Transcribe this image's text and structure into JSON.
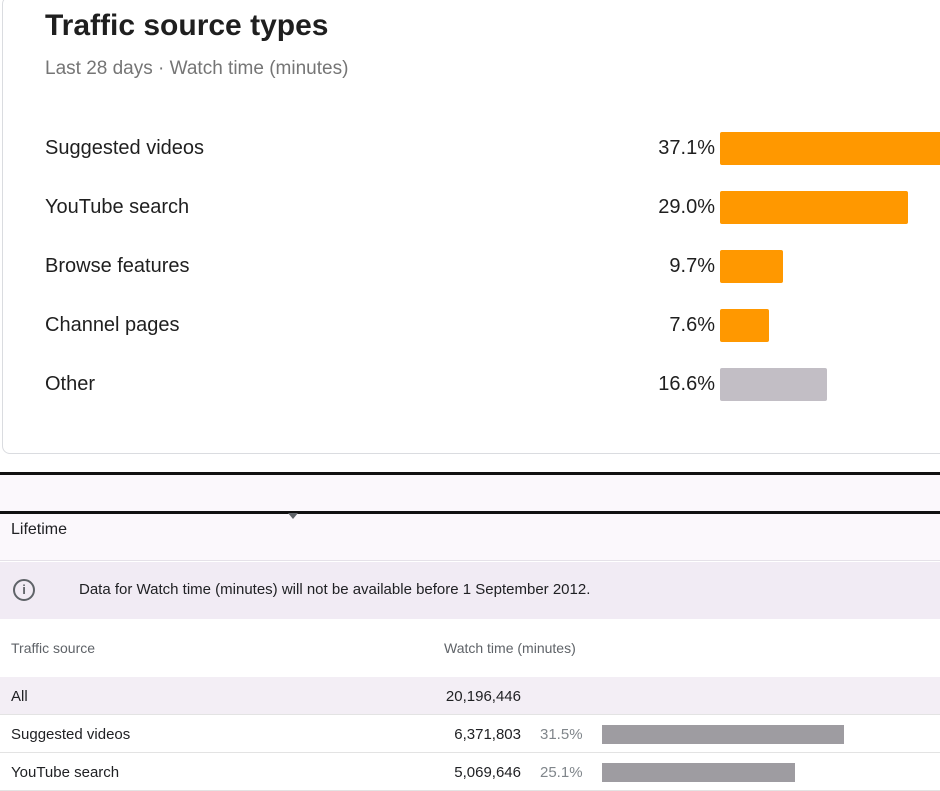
{
  "colors": {
    "accent_bar": "#ff9800",
    "other_bar": "#c2bec5",
    "table_bar": "#9e9ca1"
  },
  "chart": {
    "title": "Traffic source types",
    "subtitle": "Last 28 days · Watch time (minutes)"
  },
  "chart_data": {
    "type": "bar",
    "orientation": "horizontal",
    "title": "Traffic source types",
    "subtitle": "Last 28 days · Watch time (minutes)",
    "categories": [
      "Suggested videos",
      "YouTube search",
      "Browse features",
      "Channel pages",
      "Other"
    ],
    "values": [
      37.1,
      29.0,
      9.7,
      7.6,
      16.6
    ],
    "value_labels": [
      "37.1%",
      "29.0%",
      "9.7%",
      "7.6%",
      "16.6%"
    ],
    "unit": "%",
    "xlim": [
      0,
      37.1
    ],
    "grid": false,
    "legend": "none"
  },
  "lifetime": {
    "label": "Lifetime"
  },
  "notice": {
    "icon": "info-icon",
    "text": "Data for Watch time (minutes) will not be available before 1 September 2012."
  },
  "table": {
    "headers": {
      "source": "Traffic source",
      "watch_time": "Watch time (minutes)"
    },
    "total": {
      "source": "All",
      "value": "20,196,446"
    },
    "rows": [
      {
        "source": "Suggested videos",
        "value": "6,371,803",
        "pct_label": "31.5%",
        "pct": 31.5
      },
      {
        "source": "YouTube search",
        "value": "5,069,646",
        "pct_label": "25.1%",
        "pct": 25.1
      }
    ]
  }
}
